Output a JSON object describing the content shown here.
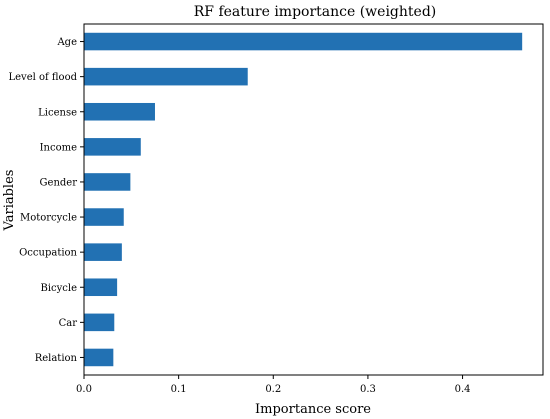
{
  "chart_data": {
    "type": "bar",
    "orientation": "horizontal",
    "title": "RF feature importance (weighted)",
    "xlabel": "Importance score",
    "ylabel": "Variables",
    "categories": [
      "Age",
      "Level of flood",
      "License",
      "Income",
      "Gender",
      "Motorcycle",
      "Occupation",
      "Bicycle",
      "Car",
      "Relation"
    ],
    "values": [
      0.463,
      0.173,
      0.075,
      0.06,
      0.049,
      0.042,
      0.04,
      0.035,
      0.032,
      0.031
    ],
    "xlim": [
      0,
      0.485
    ],
    "xticks": [
      0.0,
      0.1,
      0.2,
      0.3,
      0.4
    ],
    "xtick_labels": [
      "0.0",
      "0.1",
      "0.2",
      "0.3",
      "0.4"
    ],
    "grid": false,
    "bar_color": "#2271b3"
  }
}
